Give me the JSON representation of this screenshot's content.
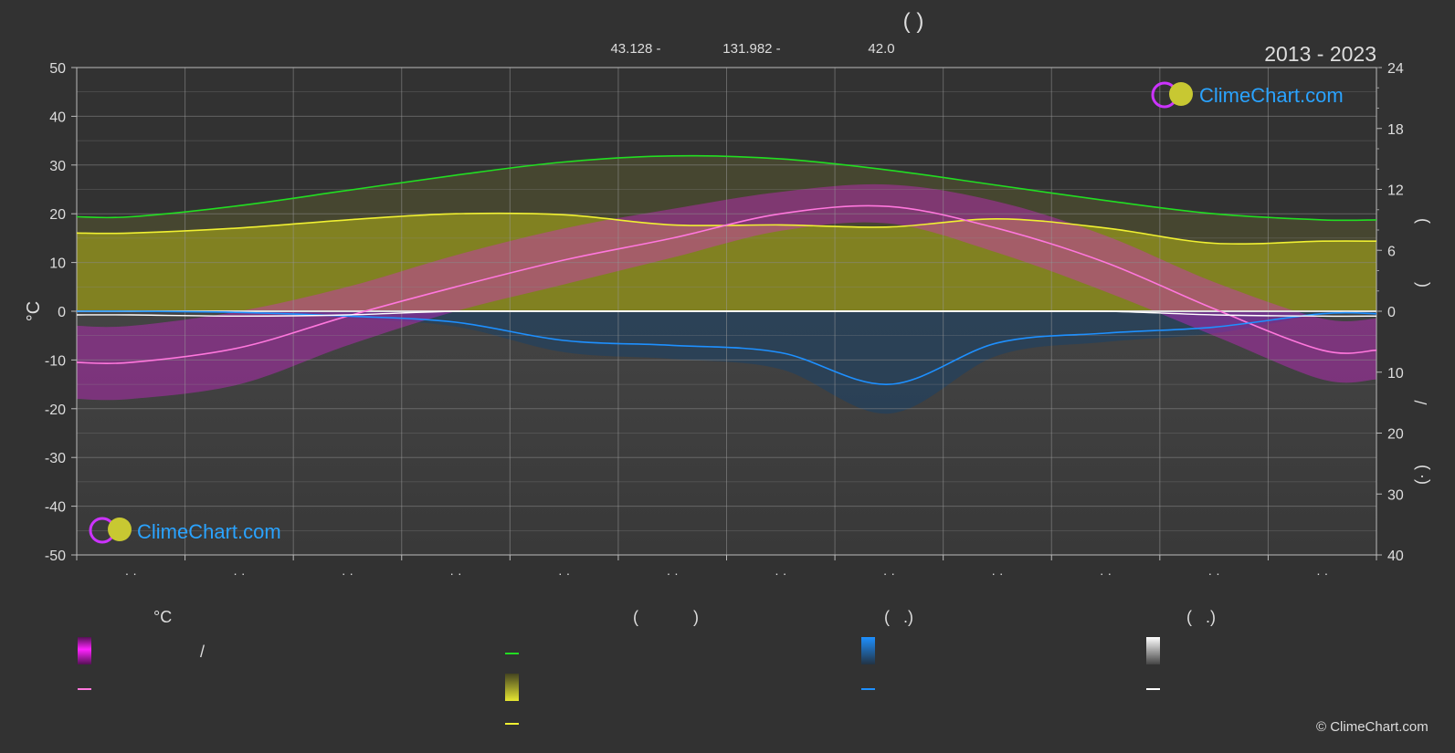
{
  "header": {
    "title": "(              )",
    "coords": {
      "lat": "43.128 -",
      "lon": "131.982 -",
      "elev": "42.0"
    },
    "period": "2013 - 2023"
  },
  "brand": {
    "name": "ClimeChart.com",
    "copyright": "© ClimeChart.com"
  },
  "legend": {
    "temp_header": "°C",
    "sun_header": "(            )",
    "rain_header": "(   .)",
    "snow_header": "(   .)",
    "temp_range_slash": "/"
  },
  "chart_data": {
    "type": "area",
    "x_months": 12,
    "month_tick_labels": [
      "· ·",
      "· ·",
      "· ·",
      "· ·",
      "· ·",
      "· ·",
      "· ·",
      "· ·",
      "· ·",
      "· ·",
      "· ·",
      "· ·"
    ],
    "left_axis": {
      "label": "°C",
      "min": -50,
      "max": 50,
      "ticks": [
        50,
        40,
        30,
        20,
        10,
        0,
        -10,
        -20,
        -30,
        -40,
        -50
      ]
    },
    "right_axis_top": {
      "label_marks": [
        ")",
        "("
      ],
      "min": 0,
      "max": 24,
      "ticks": [
        24,
        18,
        12,
        6,
        0
      ]
    },
    "right_axis_bottom": {
      "label_marks": [
        "/",
        ")",
        "(·"
      ],
      "min": 0,
      "max": 40,
      "ticks": [
        10,
        20,
        30,
        40
      ]
    },
    "colors": {
      "daylight": "#22dd22",
      "sunshine": "#f0f032",
      "temp_mean": "#ff77dd",
      "temp_range": "#dd22dd",
      "rain": "#1e90ff",
      "snow": "#ffffff",
      "sunshine_area": "#8c8c1e",
      "precip_bars": "#555555"
    },
    "series": [
      {
        "key": "daylight_hours",
        "unit": "h",
        "values": [
          9.3,
          10.4,
          11.9,
          13.4,
          14.7,
          15.3,
          15.0,
          13.9,
          12.4,
          10.9,
          9.6,
          9.0
        ]
      },
      {
        "key": "sunshine_hours",
        "unit": "h",
        "values": [
          7.7,
          8.2,
          9.0,
          9.6,
          9.5,
          8.5,
          8.5,
          8.3,
          9.1,
          8.2,
          6.7,
          6.9
        ]
      },
      {
        "key": "mean_temp",
        "unit": "°C",
        "values": [
          -10.5,
          -7.5,
          -1.0,
          5.0,
          10.5,
          15.0,
          20.0,
          21.5,
          17.0,
          10.0,
          0.5,
          -8.0
        ]
      },
      {
        "key": "temp_max",
        "unit": "°C",
        "values": [
          -3.0,
          0.0,
          5.0,
          11.5,
          17.0,
          21.0,
          24.5,
          26.0,
          22.5,
          15.5,
          6.0,
          -1.5
        ]
      },
      {
        "key": "temp_min",
        "unit": "°C",
        "values": [
          -18.0,
          -15.0,
          -7.0,
          0.0,
          5.5,
          11.0,
          16.5,
          18.0,
          12.0,
          4.0,
          -5.0,
          -14.0
        ]
      },
      {
        "key": "rain_mm_day",
        "unit": "mm",
        "values": [
          0.0,
          0.2,
          0.8,
          1.8,
          4.8,
          5.6,
          6.8,
          12.0,
          5.2,
          3.6,
          2.6,
          0.4
        ]
      },
      {
        "key": "snow_mm_day",
        "unit": "mm",
        "values": [
          0.6,
          0.8,
          0.6,
          0.0,
          0.0,
          0.0,
          0.0,
          0.0,
          0.0,
          0.0,
          0.6,
          0.8
        ]
      }
    ]
  }
}
